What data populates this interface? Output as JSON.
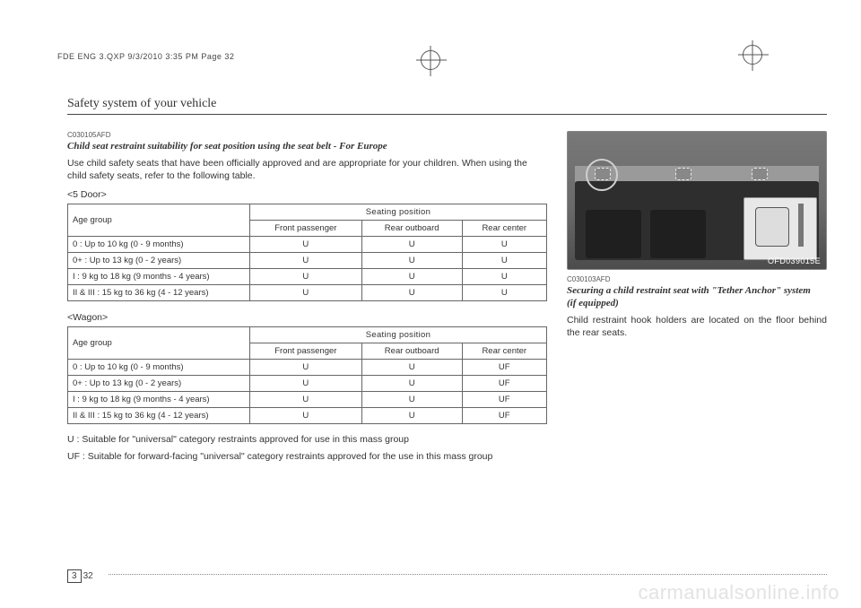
{
  "crop_text": "FDE ENG 3.QXP  9/3/2010  3:35 PM  Page 32",
  "header": "Safety system of your vehicle",
  "left": {
    "code": "C030105AFD",
    "subheading": "Child seat restraint suitability for seat position using the seat belt - For Europe",
    "intro": "Use child safety seats that have been officially approved and are appropriate for your children. When using the child safety seats, refer to the following table.",
    "variant1_label": "<5 Door>",
    "variant2_label": "<Wagon>",
    "table_headers": {
      "age_group": "Age group",
      "seating_position": "Seating position",
      "front_passenger": "Front passenger",
      "rear_outboard": "Rear outboard",
      "rear_center": "Rear center"
    },
    "table1_rows": [
      {
        "age": "0   : Up to 10 kg (0 - 9 months)",
        "fp": "U",
        "ro": "U",
        "rc": "U"
      },
      {
        "age": "0+ : Up to 13 kg (0 - 2 years)",
        "fp": "U",
        "ro": "U",
        "rc": "U"
      },
      {
        "age": "I   : 9 kg to 18 kg (9 months - 4 years)",
        "fp": "U",
        "ro": "U",
        "rc": "U"
      },
      {
        "age": "II & III : 15 kg to 36 kg (4 - 12 years)",
        "fp": "U",
        "ro": "U",
        "rc": "U"
      }
    ],
    "table2_rows": [
      {
        "age": "0   : Up to 10 kg (0 - 9 months)",
        "fp": "U",
        "ro": "U",
        "rc": "UF"
      },
      {
        "age": "0+ : Up to 13 kg (0 - 2 years)",
        "fp": "U",
        "ro": "U",
        "rc": "UF"
      },
      {
        "age": "I   : 9 kg to 18 kg (9 months - 4 years)",
        "fp": "U",
        "ro": "U",
        "rc": "UF"
      },
      {
        "age": "II & III : 15 kg to 36 kg (4 - 12 years)",
        "fp": "U",
        "ro": "U",
        "rc": "UF"
      }
    ],
    "legend_u": "U : Suitable for \"universal\" category restraints approved for use in this mass group",
    "legend_uf": "UF : Suitable for forward-facing \"universal\" category restraints approved for the use in this mass group"
  },
  "right": {
    "image_code": "OFD039015E",
    "code": "C030103AFD",
    "subheading_line1": "Securing a child restraint seat with \"Tether Anchor\" system",
    "subheading_line2": "(if equipped)",
    "body": "Child restraint hook holders are located on the floor behind the rear seats."
  },
  "page_number_section": "3",
  "page_number": "32",
  "watermark": "carmanualsonline.info"
}
